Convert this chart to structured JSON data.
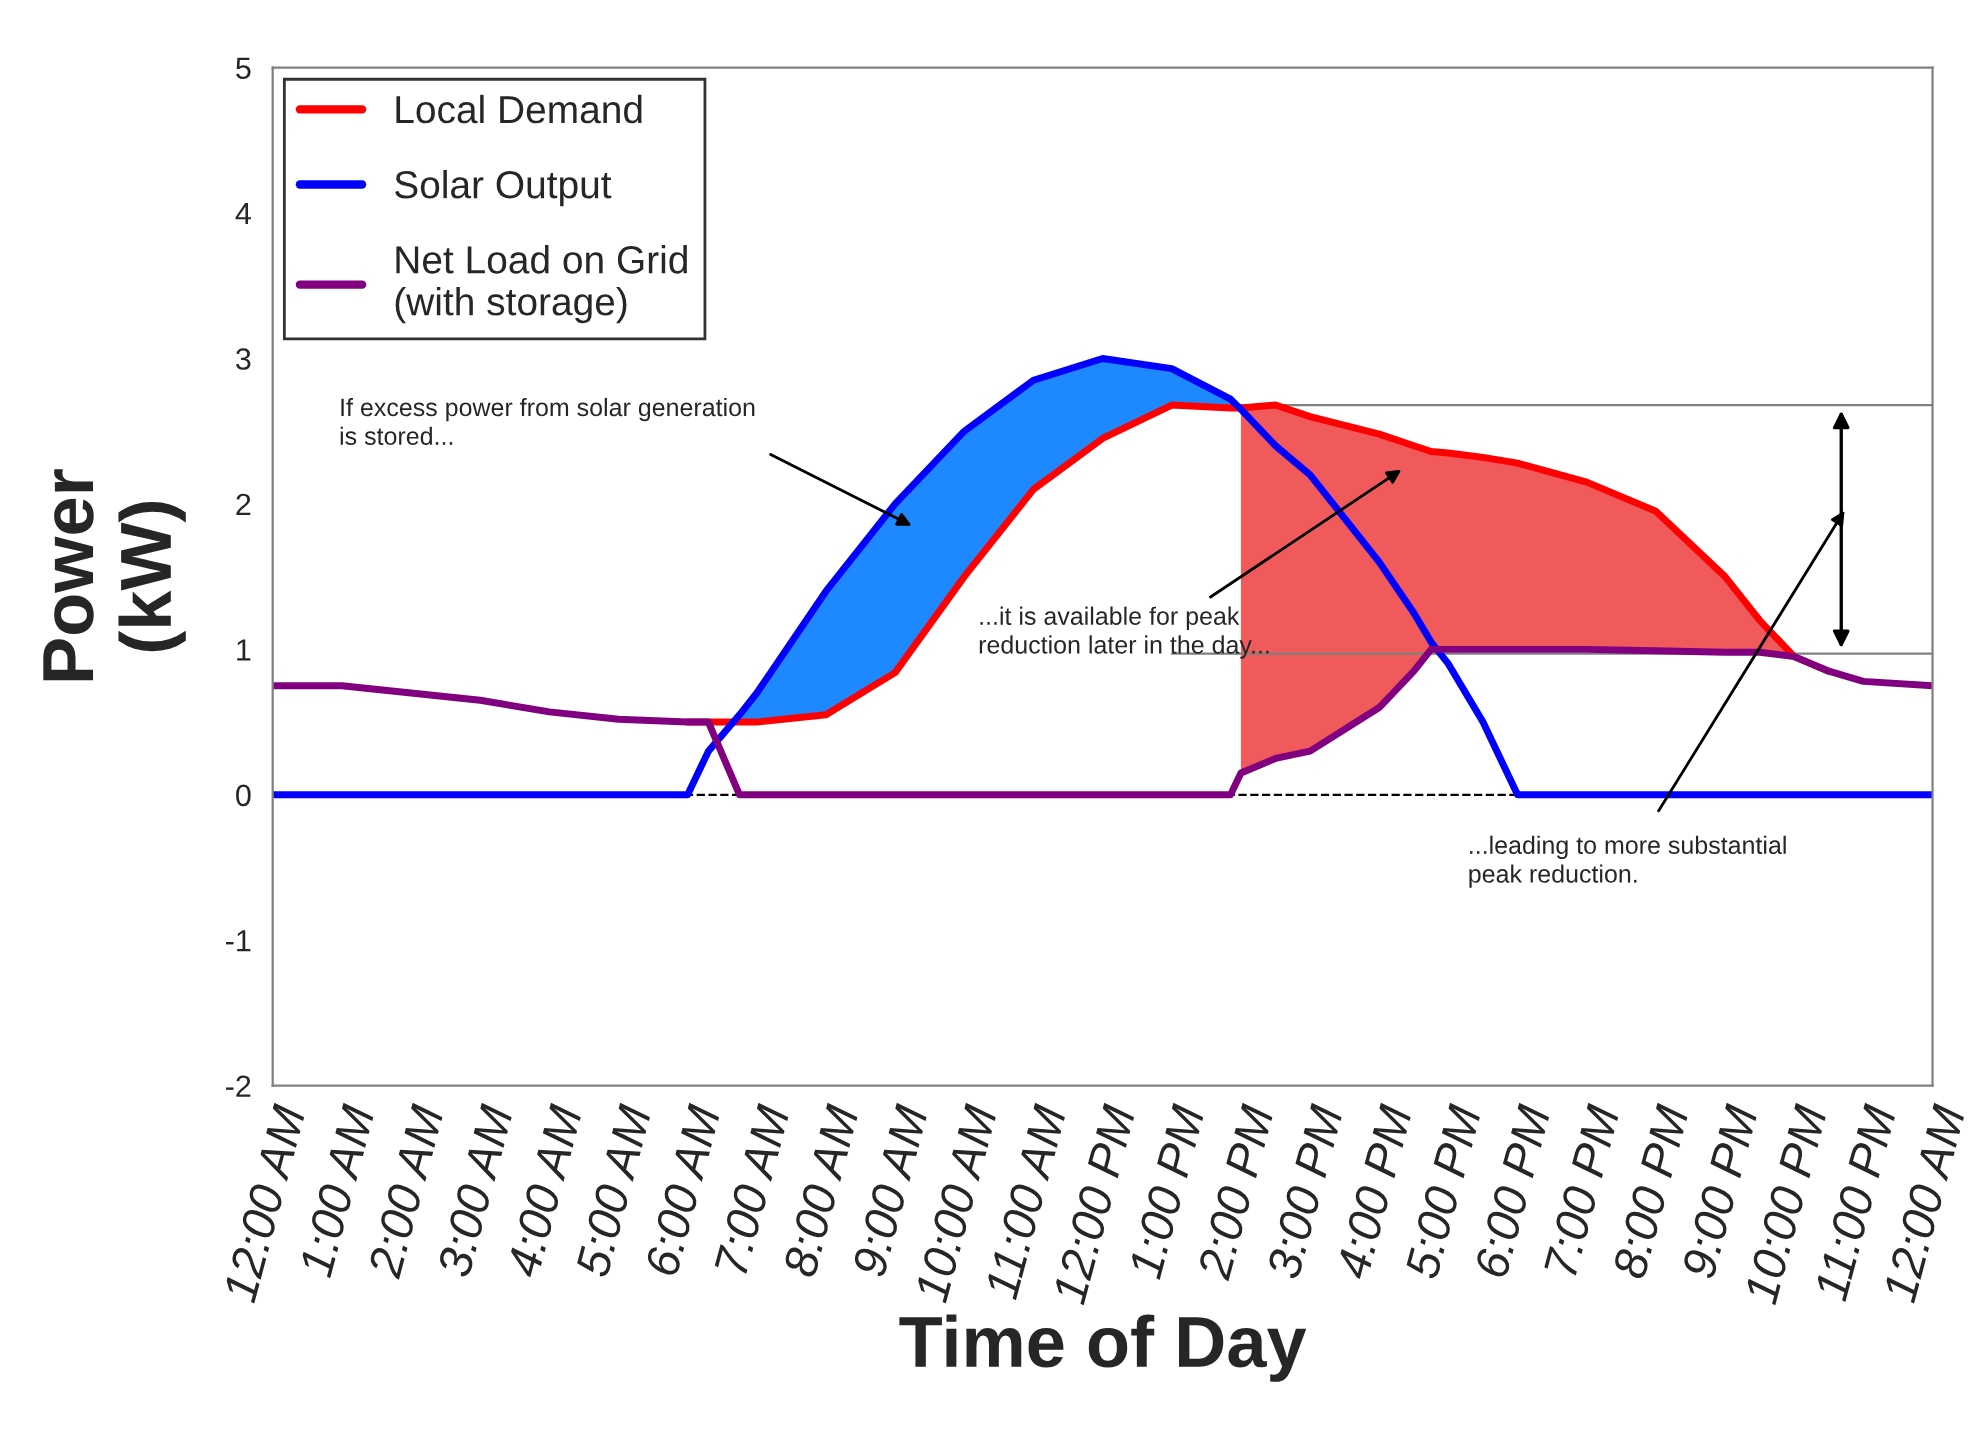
{
  "chart_data": {
    "type": "line",
    "xlabel": "Time of Day",
    "ylabel": "Power\n(kW)",
    "x": [
      0,
      1,
      2,
      3,
      4,
      5,
      6,
      6.3,
      6.75,
      7,
      8,
      9,
      10,
      11,
      12,
      13,
      13.85,
      14,
      14.5,
      15,
      16,
      16.5,
      16.75,
      17,
      17.5,
      18,
      19,
      20,
      21,
      21.5,
      22,
      22.5,
      23,
      24
    ],
    "series": [
      {
        "name": "Local Demand",
        "color": "#ff0000",
        "values": [
          null,
          null,
          null,
          null,
          null,
          null,
          0.5,
          0.5,
          0.5,
          0.5,
          0.55,
          0.84,
          1.5,
          2.1,
          2.45,
          2.68,
          2.66,
          2.66,
          2.68,
          2.6,
          2.48,
          2.4,
          2.36,
          2.35,
          2.32,
          2.28,
          2.15,
          1.95,
          1.5,
          1.2,
          0.95,
          0.85,
          null,
          null
        ]
      },
      {
        "name": "Solar Output",
        "color": "#0000ff",
        "values": [
          0,
          0,
          0,
          0,
          0,
          0,
          0,
          0.3,
          0.55,
          0.7,
          1.4,
          2.0,
          2.5,
          2.85,
          3.0,
          2.93,
          2.72,
          2.65,
          2.4,
          2.2,
          1.6,
          1.25,
          1.05,
          0.9,
          0.5,
          0,
          0,
          0,
          0,
          0,
          0,
          0,
          0,
          0
        ]
      },
      {
        "name": "Net Load on Grid\n(with storage)",
        "color": "#800080",
        "values": [
          0.75,
          0.75,
          0.7,
          0.65,
          0.57,
          0.52,
          0.5,
          0.5,
          0,
          0,
          0,
          0,
          0,
          0,
          0,
          0,
          0,
          0.15,
          0.25,
          0.3,
          0.6,
          0.85,
          1.0,
          1.0,
          1.0,
          1.0,
          1.0,
          0.99,
          0.98,
          0.98,
          0.95,
          0.85,
          0.78,
          0.75
        ]
      }
    ],
    "xlim": [
      0,
      24
    ],
    "xticks": [
      {
        "value": 0,
        "label": "12:00 AM"
      },
      {
        "value": 1,
        "label": "1:00 AM"
      },
      {
        "value": 2,
        "label": "2:00 AM"
      },
      {
        "value": 3,
        "label": "3:00 AM"
      },
      {
        "value": 4,
        "label": "4:00 AM"
      },
      {
        "value": 5,
        "label": "5:00 AM"
      },
      {
        "value": 6,
        "label": "6:00 AM"
      },
      {
        "value": 7,
        "label": "7:00 AM"
      },
      {
        "value": 8,
        "label": "8:00 AM"
      },
      {
        "value": 9,
        "label": "9:00 AM"
      },
      {
        "value": 10,
        "label": "10:00 AM"
      },
      {
        "value": 11,
        "label": "11:00 AM"
      },
      {
        "value": 12,
        "label": "12:00 PM"
      },
      {
        "value": 13,
        "label": "1:00 PM"
      },
      {
        "value": 14,
        "label": "2:00 PM"
      },
      {
        "value": 15,
        "label": "3:00 PM"
      },
      {
        "value": 16,
        "label": "4:00 PM"
      },
      {
        "value": 17,
        "label": "5:00 PM"
      },
      {
        "value": 18,
        "label": "6:00 PM"
      },
      {
        "value": 19,
        "label": "7:00 PM"
      },
      {
        "value": 20,
        "label": "8:00 PM"
      },
      {
        "value": 21,
        "label": "9:00 PM"
      },
      {
        "value": 22,
        "label": "10:00 PM"
      },
      {
        "value": 23,
        "label": "11:00 PM"
      },
      {
        "value": 24,
        "label": "12:00 AM"
      }
    ],
    "ylim": [
      -2,
      5
    ],
    "yticks": [
      -2,
      -1,
      0,
      1,
      2,
      3,
      4,
      5
    ],
    "ref_lines": [
      {
        "axis": "y",
        "value": 0,
        "color": "#000000",
        "line_style": "dashed"
      },
      {
        "axis": "y",
        "value": 2.68,
        "color": "#808080",
        "line_style": "solid"
      },
      {
        "axis": "y",
        "value": 0.97,
        "color": "#808080",
        "line_style": "solid"
      }
    ],
    "annotations": [
      "If excess power from solar generation\nis stored...",
      "...it is available for peak\nreduction later in the day...",
      "...leading to more substantial\npeak reduction."
    ],
    "grid": false,
    "legend": "top left",
    "marker": "none",
    "line_style": "solid"
  }
}
